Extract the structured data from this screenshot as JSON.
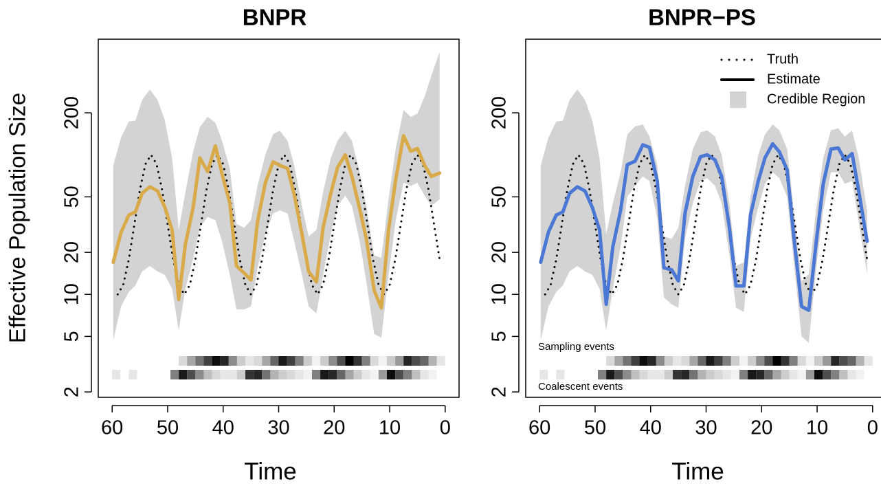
{
  "chart_data": [
    {
      "type": "line",
      "title": "BNPR",
      "x_label": "Time",
      "y_label": "Effective Population Size",
      "log_y": true,
      "xlim": [
        62.5,
        -2.5
      ],
      "xticks": [
        60,
        50,
        40,
        30,
        20,
        10,
        0
      ],
      "ylim": [
        1.83,
        674
      ],
      "yticks": [
        2,
        5,
        10,
        20,
        50,
        200
      ],
      "x": [
        59.8,
        58.4,
        57,
        55.8,
        54.6,
        53.2,
        51.8,
        50.5,
        49.2,
        48,
        46.8,
        45.4,
        44.2,
        42.8,
        41.4,
        40.2,
        38.8,
        37.6,
        36.2,
        35,
        33.8,
        32.4,
        31,
        29.8,
        28.4,
        27.2,
        25.8,
        24.6,
        23.2,
        22,
        20.6,
        19.4,
        18,
        16.8,
        15.4,
        14.2,
        12.8,
        11.5,
        10.2,
        8.9,
        7.5,
        6.2,
        5,
        3.7,
        2.5,
        1
      ],
      "series": [
        {
          "style": "dotted",
          "color": "#000000",
          "x": [
            59,
            58,
            57,
            56,
            55,
            54,
            53,
            52,
            51,
            50,
            49,
            48,
            47,
            46,
            45,
            44,
            43,
            42,
            41,
            40,
            39,
            38,
            37,
            36,
            35,
            34,
            33,
            32,
            31,
            30,
            29,
            28,
            27,
            26,
            25,
            24,
            23,
            22,
            21,
            20,
            19,
            18,
            17,
            16,
            15,
            14,
            13,
            12,
            11,
            10,
            9,
            8,
            7,
            6,
            5,
            4,
            3,
            2,
            1
          ],
          "values": [
            10,
            11.7,
            17.8,
            31.6,
            56.2,
            85.8,
            100,
            85.8,
            56.2,
            31.6,
            17.8,
            11.7,
            10,
            11.7,
            17.8,
            31.6,
            56.2,
            85.8,
            100,
            85.8,
            56.2,
            31.6,
            17.8,
            11.7,
            10,
            11.7,
            17.8,
            31.6,
            56.2,
            85.8,
            100,
            85.8,
            56.2,
            31.6,
            17.8,
            11.7,
            10,
            11.7,
            17.8,
            31.6,
            56.2,
            85.8,
            100,
            85.8,
            56.2,
            31.6,
            17.8,
            11.7,
            10,
            11.7,
            17.8,
            31.6,
            56.2,
            85.8,
            100,
            85.8,
            56.2,
            31.6,
            17.8
          ]
        },
        {
          "style": "solid",
          "color": "#d9aa4a",
          "values": [
            17,
            27.8,
            37,
            39,
            53,
            59,
            55,
            42,
            29,
            9.2,
            23,
            42,
            95,
            76,
            116,
            73,
            45,
            16,
            14.2,
            12.7,
            33.3,
            63,
            89,
            84,
            80,
            52,
            27,
            14.6,
            12.3,
            30,
            53,
            81,
            100,
            70,
            41,
            25,
            10.7,
            8,
            29,
            67,
            137,
            106,
            111,
            84,
            70,
            74
          ]
        }
      ],
      "band": {
        "color": "#d3d3d3",
        "upper": [
          84,
          133,
          173,
          176,
          247,
          294,
          247,
          176,
          95,
          29,
          54,
          106,
          158,
          187,
          170,
          126,
          80,
          32,
          30,
          34,
          60,
          100,
          141,
          149,
          126,
          84,
          43,
          26,
          29,
          54,
          95,
          126,
          149,
          126,
          75,
          43,
          19,
          18.3,
          48,
          112,
          209,
          187,
          197,
          262,
          369,
          546
        ],
        "lower": [
          4.7,
          8.2,
          10.4,
          11.6,
          14.6,
          16,
          14.6,
          13.8,
          11,
          5.5,
          11,
          18,
          30,
          36,
          34,
          24,
          13.8,
          7.8,
          7.8,
          8.2,
          15.5,
          27,
          38,
          40,
          38,
          24,
          13.8,
          8.2,
          7.3,
          13.8,
          27,
          43,
          51,
          43,
          24,
          12.3,
          5.2,
          4.9,
          13.8,
          34,
          63,
          60,
          63,
          51,
          43,
          48
        ]
      },
      "sampling_events": {
        "bins": [
          48,
          46.5,
          45,
          43.5,
          42,
          40.5,
          39,
          37.5,
          36,
          34.5,
          33,
          31.5,
          30,
          28.5,
          27,
          25.5,
          24,
          22.5,
          21,
          19.5,
          18,
          16.5,
          15,
          13.5,
          12,
          10.5,
          9,
          7.5,
          6,
          4.5,
          3,
          1.5,
          0
        ],
        "intensity": [
          0.15,
          0.35,
          0.55,
          0.75,
          0.95,
          0.85,
          0.45,
          0.2,
          0.1,
          0.15,
          0.35,
          0.6,
          0.9,
          0.75,
          0.5,
          0.2,
          0.05,
          0.2,
          0.45,
          0.7,
          1,
          0.8,
          0.5,
          0.15,
          0.05,
          0.2,
          0.4,
          0.85,
          0.7,
          0.6,
          0.3,
          0.1
        ]
      },
      "coalescent_events": {
        "bins": [
          60,
          58.5,
          57,
          55.5,
          54,
          52.5,
          51,
          49.5,
          48,
          46.5,
          45,
          43.5,
          42,
          40.5,
          39,
          37.5,
          36,
          34.5,
          33,
          31.5,
          30,
          28.5,
          27,
          25.5,
          24,
          22.5,
          21,
          19.5,
          18,
          16.5,
          15,
          13.5,
          12,
          10.5,
          9,
          7.5,
          6,
          4.5,
          3,
          1.5,
          0
        ],
        "intensity": [
          0.1,
          0,
          0.1,
          0,
          0,
          0,
          0,
          0.5,
          0.9,
          0.7,
          0.45,
          0.25,
          0.15,
          0.1,
          0.1,
          0.2,
          0.8,
          0.85,
          0.55,
          0.3,
          0.2,
          0.15,
          0.1,
          0.05,
          0.5,
          0.9,
          0.85,
          0.6,
          0.35,
          0.2,
          0.1,
          0.05,
          0.4,
          0.95,
          0.7,
          0.5,
          0.25,
          0.1,
          0.05,
          0
        ]
      }
    },
    {
      "type": "line",
      "title": "BNPR−PS",
      "x_label": "Time",
      "log_y": true,
      "xlim": [
        62.5,
        -2.5
      ],
      "xticks": [
        60,
        50,
        40,
        30,
        20,
        10,
        0
      ],
      "ylim": [
        1.83,
        674
      ],
      "yticks": [
        2,
        5,
        10,
        20,
        50,
        200
      ],
      "x": [
        59.8,
        58.4,
        57,
        55.8,
        54.6,
        53.2,
        51.8,
        50.5,
        49.2,
        48,
        46.8,
        45.4,
        44.2,
        42.8,
        41.4,
        40.2,
        38.8,
        37.6,
        36.2,
        35,
        33.8,
        32.4,
        31,
        29.8,
        28.4,
        27.2,
        25.8,
        24.6,
        23.2,
        22,
        20.6,
        19.4,
        18,
        16.8,
        15.4,
        14.2,
        12.8,
        11.5,
        10.2,
        8.9,
        7.5,
        6.2,
        5,
        3.7,
        2.5,
        1
      ],
      "legend": {
        "position": "topright",
        "color": "#000000"
      },
      "series": [
        {
          "name": "Truth",
          "style": "dotted",
          "color": "#000000",
          "x": [
            59,
            58,
            57,
            56,
            55,
            54,
            53,
            52,
            51,
            50,
            49,
            48,
            47,
            46,
            45,
            44,
            43,
            42,
            41,
            40,
            39,
            38,
            37,
            36,
            35,
            34,
            33,
            32,
            31,
            30,
            29,
            28,
            27,
            26,
            25,
            24,
            23,
            22,
            21,
            20,
            19,
            18,
            17,
            16,
            15,
            14,
            13,
            12,
            11,
            10,
            9,
            8,
            7,
            6,
            5,
            4,
            3,
            2,
            1
          ],
          "values": [
            10,
            11.7,
            17.8,
            31.6,
            56.2,
            85.8,
            100,
            85.8,
            56.2,
            31.6,
            17.8,
            11.7,
            10,
            11.7,
            17.8,
            31.6,
            56.2,
            85.8,
            100,
            85.8,
            56.2,
            31.6,
            17.8,
            11.7,
            10,
            11.7,
            17.8,
            31.6,
            56.2,
            85.8,
            100,
            85.8,
            56.2,
            31.6,
            17.8,
            11.7,
            10,
            11.7,
            17.8,
            31.6,
            56.2,
            85.8,
            100,
            85.8,
            56.2,
            31.6,
            17.8,
            11.7,
            10,
            11.7,
            17.8,
            31.6,
            56.2,
            85.8,
            100,
            85.8,
            56.2,
            31.6,
            17.8
          ]
        },
        {
          "name": "Estimate",
          "style": "solid",
          "color": "#4a78d4",
          "values": [
            17,
            28,
            37,
            39,
            53,
            59,
            55,
            42,
            29,
            8.5,
            22,
            40,
            85,
            90,
            118,
            113,
            65,
            15.5,
            15,
            12.5,
            38,
            70,
            97,
            100,
            92,
            70,
            30,
            11.5,
            11.5,
            37,
            65,
            95,
            120,
            105,
            78,
            26,
            8.2,
            7.7,
            23,
            62,
            110,
            112,
            92,
            102,
            55,
            24
          ]
        }
      ],
      "band": {
        "name": "Credible Region",
        "color": "#d3d3d3",
        "upper": [
          84,
          133,
          173,
          176,
          247,
          294,
          247,
          176,
          95,
          27,
          45,
          75,
          140,
          160,
          165,
          135,
          85,
          26,
          25,
          30,
          60,
          110,
          145,
          150,
          135,
          100,
          45,
          16,
          17,
          50,
          100,
          140,
          165,
          150,
          110,
          40,
          12.5,
          14,
          40,
          95,
          150,
          155,
          135,
          150,
          95,
          40
        ],
        "lower": [
          4.7,
          8.2,
          10.4,
          11.6,
          14.6,
          16,
          14.6,
          13.8,
          11,
          5.5,
          11,
          22,
          50,
          60,
          70,
          65,
          35,
          9.5,
          8.5,
          8,
          25,
          45,
          65,
          68,
          60,
          45,
          19,
          8,
          7.5,
          25,
          42,
          62,
          75,
          68,
          50,
          17,
          5,
          4.5,
          15,
          40,
          75,
          75,
          62,
          65,
          33,
          14
        ]
      },
      "sampling_events": {
        "label": "Sampling events",
        "bins": [
          48,
          46.5,
          45,
          43.5,
          42,
          40.5,
          39,
          37.5,
          36,
          34.5,
          33,
          31.5,
          30,
          28.5,
          27,
          25.5,
          24,
          22.5,
          21,
          19.5,
          18,
          16.5,
          15,
          13.5,
          12,
          10.5,
          9,
          7.5,
          6,
          4.5,
          3,
          1.5,
          0
        ],
        "intensity": [
          0.15,
          0.35,
          0.55,
          0.75,
          0.95,
          0.85,
          0.45,
          0.2,
          0.1,
          0.15,
          0.35,
          0.6,
          0.9,
          0.75,
          0.5,
          0.2,
          0.05,
          0.2,
          0.45,
          0.7,
          1,
          0.8,
          0.5,
          0.15,
          0.05,
          0.2,
          0.4,
          0.85,
          0.7,
          0.6,
          0.3,
          0.1
        ]
      },
      "coalescent_events": {
        "label": "Coalescent events",
        "bins": [
          60,
          58.5,
          57,
          55.5,
          54,
          52.5,
          51,
          49.5,
          48,
          46.5,
          45,
          43.5,
          42,
          40.5,
          39,
          37.5,
          36,
          34.5,
          33,
          31.5,
          30,
          28.5,
          27,
          25.5,
          24,
          22.5,
          21,
          19.5,
          18,
          16.5,
          15,
          13.5,
          12,
          10.5,
          9,
          7.5,
          6,
          4.5,
          3,
          1.5,
          0
        ],
        "intensity": [
          0.1,
          0,
          0.1,
          0,
          0,
          0,
          0,
          0.5,
          0.9,
          0.7,
          0.45,
          0.25,
          0.15,
          0.1,
          0.1,
          0.2,
          0.8,
          0.85,
          0.55,
          0.3,
          0.2,
          0.15,
          0.1,
          0.05,
          0.5,
          0.9,
          0.85,
          0.6,
          0.35,
          0.2,
          0.1,
          0.05,
          0.4,
          0.95,
          0.7,
          0.5,
          0.25,
          0.1,
          0.05,
          0
        ]
      }
    }
  ]
}
